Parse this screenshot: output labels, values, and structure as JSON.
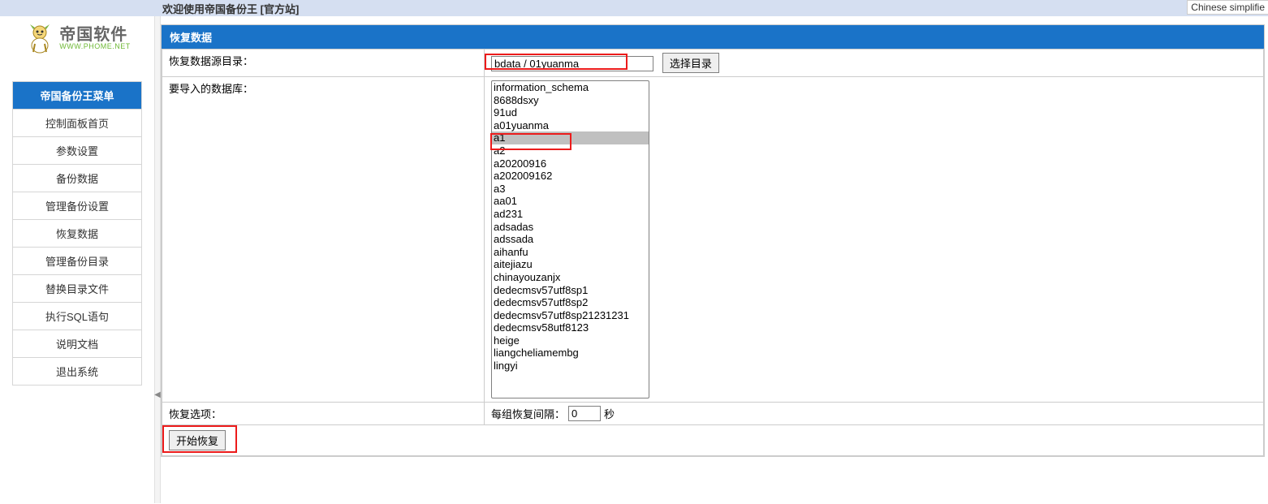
{
  "top_bar": {
    "title": "欢迎使用帝国备份王 [官方站]",
    "lang_badge": "Chinese simplifie"
  },
  "logo": {
    "cn": "帝国软件",
    "url": "WWW.PHOME.NET"
  },
  "menu": {
    "header": "帝国备份王菜单",
    "items": [
      "控制面板首页",
      "参数设置",
      "备份数据",
      "管理备份设置",
      "恢复数据",
      "管理备份目录",
      "替换目录文件",
      "执行SQL语句",
      "说明文档",
      "退出系统"
    ]
  },
  "panel": {
    "header": "恢复数据",
    "rows": {
      "source_label": "恢复数据源目录：",
      "source_value": "bdata / 01yuanma",
      "choose_dir_btn": "选择目录",
      "import_label": "要导入的数据库：",
      "databases": [
        "information_schema",
        "8688dsxy",
        "91ud",
        "a01yuanma",
        "a1",
        "a2",
        "a20200916",
        "a202009162",
        "a3",
        "aa01",
        "ad231",
        "adsadas",
        "adssada",
        "aihanfu",
        "aitejiazu",
        "chinayouzanjx",
        "dedecmsv57utf8sp1",
        "dedecmsv57utf8sp2",
        "dedecmsv57utf8sp21231231",
        "dedecmsv58utf8123",
        "heige",
        "liangcheliamembg",
        "lingyi"
      ],
      "selected_db_index": 4,
      "option_label": "恢复选项：",
      "interval_label": "每组恢复间隔：",
      "interval_value": "0",
      "interval_unit": "秒",
      "submit_btn": "开始恢复"
    }
  },
  "colors": {
    "header_blue": "#1a73c8",
    "top_bg": "#d5dff1",
    "border_gray": "#cccccc",
    "highlight_red": "#ec1b1b",
    "selected_gray": "#c0c0c0"
  }
}
